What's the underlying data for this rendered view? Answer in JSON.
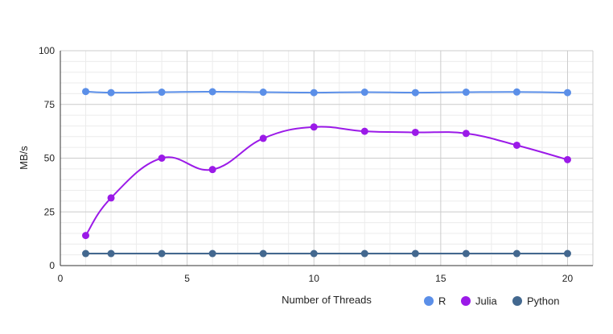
{
  "chart_data": {
    "type": "line",
    "title": "",
    "xlabel": "Number of Threads",
    "ylabel": "MB/s",
    "xlim": [
      0,
      21
    ],
    "ylim": [
      0,
      100
    ],
    "x_ticks": [
      0,
      5,
      10,
      15,
      20
    ],
    "y_ticks": [
      0,
      25,
      50,
      75,
      100
    ],
    "grid": true,
    "smooth": true,
    "legend_position": "bottom-right",
    "x": [
      1,
      2,
      4,
      6,
      8,
      10,
      12,
      14,
      16,
      18,
      20
    ],
    "series": [
      {
        "name": "R",
        "color": "#5b8fe8",
        "values": [
          81.0,
          80.5,
          80.7,
          80.9,
          80.7,
          80.5,
          80.7,
          80.5,
          80.7,
          80.8,
          80.5
        ]
      },
      {
        "name": "Julia",
        "color": "#9b1ae8",
        "values": [
          14.0,
          31.5,
          50.0,
          44.7,
          59.2,
          64.5,
          62.5,
          62.0,
          61.5,
          56.0,
          49.3
        ]
      },
      {
        "name": "Python",
        "color": "#43688f",
        "values": [
          5.6,
          5.6,
          5.6,
          5.6,
          5.6,
          5.6,
          5.6,
          5.6,
          5.6,
          5.6,
          5.6
        ]
      }
    ]
  }
}
